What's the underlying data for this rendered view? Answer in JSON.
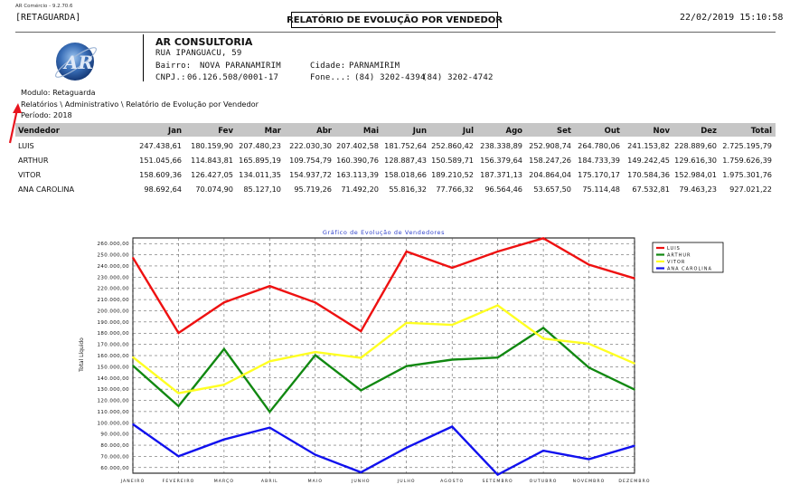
{
  "header": {
    "version": "AR Comércio - 9.2.70.6",
    "module_tag": "[RETAGUARDA]",
    "report_title": "RELATÓRIO DE EVOLUÇÃO POR VENDEDOR",
    "datetime": "22/02/2019 15:10:58"
  },
  "company": {
    "name": "AR CONSULTORIA",
    "street": "RUA IPANGUACU, 59",
    "district_label": "Bairro:",
    "district": "NOVA PARANAMIRIM",
    "city_label": "Cidade:",
    "city": "PARNAMIRIM",
    "cnpj_label": "CNPJ.:",
    "cnpj": "06.126.508/0001-17",
    "phone_label": "Fone...:",
    "phone1": "(84) 3202-4394",
    "phone2": "(84) 3202-4742"
  },
  "info": {
    "module": "Modulo: Retaguarda",
    "path": "Relatórios \\ Administrativo \\ Relatório de Evolução por Vendedor",
    "period": "Período:  2018"
  },
  "table": {
    "columns": [
      "Vendedor",
      "Jan",
      "Fev",
      "Mar",
      "Abr",
      "Mai",
      "Jun",
      "Jul",
      "Ago",
      "Set",
      "Out",
      "Nov",
      "Dez",
      "Total"
    ],
    "rows": [
      [
        "LUIS",
        "247.438,61",
        "180.159,90",
        "207.480,23",
        "222.030,30",
        "207.402,58",
        "181.752,64",
        "252.860,42",
        "238.338,89",
        "252.908,74",
        "264.780,06",
        "241.153,82",
        "228.889,60",
        "2.725.195,79"
      ],
      [
        "ARTHUR",
        "151.045,66",
        "114.843,81",
        "165.895,19",
        "109.754,79",
        "160.390,76",
        "128.887,43",
        "150.589,71",
        "156.379,64",
        "158.247,26",
        "184.733,39",
        "149.242,45",
        "129.616,30",
        "1.759.626,39"
      ],
      [
        "VITOR",
        "158.609,36",
        "126.427,05",
        "134.011,35",
        "154.937,72",
        "163.113,39",
        "158.018,66",
        "189.210,52",
        "187.371,13",
        "204.864,04",
        "175.170,17",
        "170.584,36",
        "152.984,01",
        "1.975.301,76"
      ],
      [
        "ANA CAROLINA",
        "98.692,64",
        "70.074,90",
        "85.127,10",
        "95.719,26",
        "71.492,20",
        "55.816,32",
        "77.766,32",
        "96.564,46",
        "53.657,50",
        "75.114,48",
        "67.532,81",
        "79.463,23",
        "927.021,22"
      ]
    ]
  },
  "chart_data": {
    "type": "line",
    "title": "Gráfico de Evolução de Vendedores",
    "ylabel": "Total Líquido",
    "xlabel": "",
    "categories": [
      "JANEIRO",
      "FEVEREIRO",
      "MARÇO",
      "ABRIL",
      "MAIO",
      "JUNHO",
      "JULHO",
      "AGOSTO",
      "SETEMBRO",
      "OUTUBRO",
      "NOVEMBRO",
      "DEZEMBRO"
    ],
    "yticks": [
      "60.000,00",
      "70.000,00",
      "80.000,00",
      "90.000,00",
      "100.000,00",
      "110.000,00",
      "120.000,00",
      "130.000,00",
      "140.000,00",
      "150.000,00",
      "160.000,00",
      "170.000,00",
      "180.000,00",
      "190.000,00",
      "200.000,00",
      "210.000,00",
      "220.000,00",
      "230.000,00",
      "240.000,00",
      "250.000,00",
      "260.000,00"
    ],
    "ylim": [
      55000,
      265000
    ],
    "grid": true,
    "legend_position": "top-right",
    "series": [
      {
        "name": "LUIS",
        "color": "#ee1111",
        "values": [
          247438.61,
          180159.9,
          207480.23,
          222030.3,
          207402.58,
          181752.64,
          252860.42,
          238338.89,
          252908.74,
          264780.06,
          241153.82,
          228889.6
        ]
      },
      {
        "name": "ARTHUR",
        "color": "#118811",
        "values": [
          151045.66,
          114843.81,
          165895.19,
          109754.79,
          160390.76,
          128887.43,
          150589.71,
          156379.64,
          158247.26,
          184733.39,
          149242.45,
          129616.3
        ]
      },
      {
        "name": "VITOR",
        "color": "#ffff22",
        "values": [
          158609.36,
          126427.05,
          134011.35,
          154937.72,
          163113.39,
          158018.66,
          189210.52,
          187371.13,
          204864.04,
          175170.17,
          170584.36,
          152984.01
        ]
      },
      {
        "name": "ANA CAROLINA",
        "color": "#1111ee",
        "values": [
          98692.64,
          70074.9,
          85127.1,
          95719.26,
          71492.2,
          55816.32,
          77766.32,
          96564.46,
          53657.5,
          75114.48,
          67532.81,
          79463.23
        ]
      }
    ]
  }
}
